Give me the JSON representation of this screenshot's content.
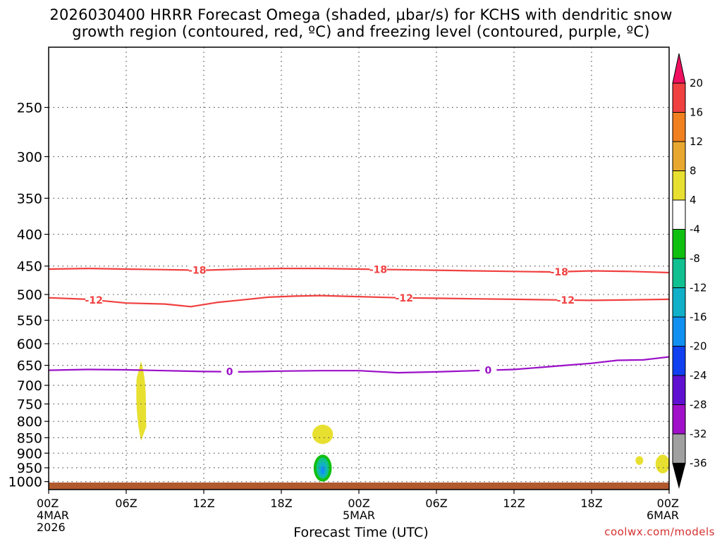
{
  "chart_data": {
    "type": "heatmap",
    "title_line1": "2026030400 HRRR Forecast Omega (shaded, μbar/s) for KCHS with dendritic snow",
    "title_line2": "growth region (contoured, red, ºC) and freezing level (contoured, purple, ºC)",
    "xlabel": "Forecast Time (UTC)",
    "credit": "coolwx.com/models",
    "x_range_hours": [
      0,
      48
    ],
    "x_ticks": [
      {
        "hour": 0,
        "label": "00Z",
        "sub": [
          "4MAR",
          "2026"
        ]
      },
      {
        "hour": 6,
        "label": "06Z",
        "sub": []
      },
      {
        "hour": 12,
        "label": "12Z",
        "sub": []
      },
      {
        "hour": 18,
        "label": "18Z",
        "sub": []
      },
      {
        "hour": 24,
        "label": "00Z",
        "sub": [
          "5MAR"
        ]
      },
      {
        "hour": 30,
        "label": "06Z",
        "sub": []
      },
      {
        "hour": 36,
        "label": "12Z",
        "sub": []
      },
      {
        "hour": 42,
        "label": "18Z",
        "sub": []
      },
      {
        "hour": 48,
        "label": "00Z",
        "sub": [
          "6MAR"
        ]
      }
    ],
    "y_axis": {
      "unit": "hPa",
      "top": 200,
      "bottom": 1030,
      "scale": "log",
      "inverted": true
    },
    "y_ticks": [
      {
        "p": 250,
        "label": "250"
      },
      {
        "p": 300,
        "label": "300"
      },
      {
        "p": 350,
        "label": "350"
      },
      {
        "p": 400,
        "label": "400"
      },
      {
        "p": 450,
        "label": "450"
      },
      {
        "p": 500,
        "label": "500"
      },
      {
        "p": 550,
        "label": "550"
      },
      {
        "p": 600,
        "label": "600"
      },
      {
        "p": 650,
        "label": "650"
      },
      {
        "p": 700,
        "label": "700"
      },
      {
        "p": 750,
        "label": "750"
      },
      {
        "p": 800,
        "label": "800"
      },
      {
        "p": 850,
        "label": "850"
      },
      {
        "p": 900,
        "label": "900"
      },
      {
        "p": 950,
        "label": "950"
      },
      {
        "p": 1000,
        "label": "1000"
      }
    ],
    "grid": true,
    "colorbar": [
      {
        "value": "20",
        "color": "#f01060"
      },
      {
        "value": "16",
        "color": "#f04040"
      },
      {
        "value": "12",
        "color": "#f08020"
      },
      {
        "value": "8",
        "color": "#e8a830"
      },
      {
        "value": "4",
        "color": "#e8e030"
      },
      {
        "value": "-4",
        "color": "#ffffff"
      },
      {
        "value": "-8",
        "color": "#10c010"
      },
      {
        "value": "-12",
        "color": "#10c090"
      },
      {
        "value": "-16",
        "color": "#10b0c8"
      },
      {
        "value": "-20",
        "color": "#1090f0"
      },
      {
        "value": "-24",
        "color": "#1040f0"
      },
      {
        "value": "-28",
        "color": "#6010d0"
      },
      {
        "value": "-32",
        "color": "#a010c8"
      },
      {
        "value": "-36",
        "color": "#a0a0a0"
      },
      {
        "value": "",
        "color": "#000000"
      }
    ],
    "ground_color": "#b05a2e",
    "contours": [
      {
        "name": "contour-minus18",
        "label": "-18",
        "color": "#f04040",
        "points": [
          [
            0,
            455
          ],
          [
            3,
            454
          ],
          [
            6,
            455
          ],
          [
            9,
            456
          ],
          [
            12,
            457
          ],
          [
            15,
            455
          ],
          [
            18,
            454
          ],
          [
            21,
            454
          ],
          [
            24,
            455
          ],
          [
            27,
            456
          ],
          [
            30,
            457
          ],
          [
            33,
            458
          ],
          [
            36,
            459
          ],
          [
            39,
            460
          ],
          [
            42,
            458
          ],
          [
            45,
            459
          ],
          [
            48,
            461
          ]
        ],
        "label_hours": [
          11.5,
          25.5,
          39.5
        ]
      },
      {
        "name": "contour-minus12",
        "label": "-12",
        "color": "#f04040",
        "points": [
          [
            0,
            506
          ],
          [
            3,
            509
          ],
          [
            6,
            516
          ],
          [
            9,
            518
          ],
          [
            11,
            523
          ],
          [
            13,
            515
          ],
          [
            15,
            510
          ],
          [
            17,
            505
          ],
          [
            19,
            503
          ],
          [
            21,
            502
          ],
          [
            24,
            504
          ],
          [
            27,
            506
          ],
          [
            30,
            507
          ],
          [
            33,
            508
          ],
          [
            36,
            509
          ],
          [
            39,
            510
          ],
          [
            42,
            511
          ],
          [
            45,
            510
          ],
          [
            48,
            509
          ]
        ],
        "label_hours": [
          3.5,
          27.5,
          40.0
        ]
      },
      {
        "name": "contour-freezing-level",
        "label": "0",
        "color": "#9b10c8",
        "points": [
          [
            0,
            662
          ],
          [
            3,
            660
          ],
          [
            6,
            661
          ],
          [
            9,
            663
          ],
          [
            12,
            665
          ],
          [
            15,
            666
          ],
          [
            18,
            664
          ],
          [
            21,
            663
          ],
          [
            24,
            663
          ],
          [
            27,
            668
          ],
          [
            30,
            666
          ],
          [
            33,
            663
          ],
          [
            36,
            660
          ],
          [
            38,
            655
          ],
          [
            40,
            650
          ],
          [
            42,
            645
          ],
          [
            44,
            638
          ],
          [
            46,
            637
          ],
          [
            48,
            630
          ]
        ],
        "label_hours": [
          14.0,
          34.0
        ]
      }
    ],
    "shaded_regions": [
      {
        "name": "omega-region-0630z-column",
        "value_band": "4 to 8",
        "color": "#e8e030",
        "hour_start": 6.8,
        "hour_end": 7.5,
        "p_top": 640,
        "p_bottom": 860
      },
      {
        "name": "omega-region-2130z-850hpa",
        "value_band": "4 to 8",
        "color": "#e8e030",
        "hour_center": 21.2,
        "p_center": 840,
        "hour_halfwidth": 0.8,
        "p_top": 810,
        "p_bottom": 870
      },
      {
        "name": "omega-region-2130z-950hpa",
        "value_band": "-8 to -20",
        "color": "#10c010",
        "hour_center": 21.2,
        "p_center": 950,
        "hour_halfwidth": 0.7,
        "p_top": 905,
        "p_bottom": 1000
      },
      {
        "name": "omega-region-0330z-925hpa",
        "value_band": "4 to 8",
        "color": "#e8e030",
        "hour_center": 45.7,
        "p_center": 925,
        "hour_halfwidth": 0.3,
        "p_top": 910,
        "p_bottom": 940
      },
      {
        "name": "omega-region-0000z-935hpa",
        "value_band": "4 to 8",
        "color": "#e8e030",
        "hour_center": 47.5,
        "p_center": 935,
        "hour_halfwidth": 0.55,
        "p_top": 905,
        "p_bottom": 970
      }
    ]
  }
}
